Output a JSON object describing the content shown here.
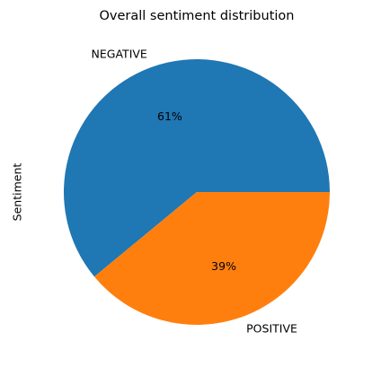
{
  "chart_data": {
    "type": "pie",
    "title": "Overall sentiment distribution",
    "ylabel": "Sentiment",
    "labels": [
      "NEGATIVE",
      "POSITIVE"
    ],
    "values": [
      61,
      39
    ],
    "percent_labels": [
      "61%",
      "39%"
    ],
    "colors": [
      "#1f77b4",
      "#ff7f0e"
    ],
    "start_angle_deg": 0,
    "direction": "counterclockwise",
    "legend": "none",
    "grid": false
  }
}
